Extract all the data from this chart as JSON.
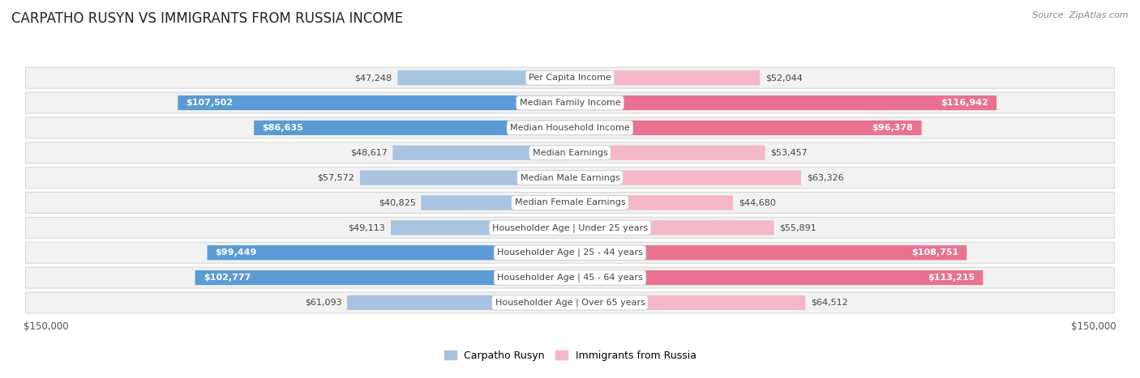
{
  "title": "CARPATHO RUSYN VS IMMIGRANTS FROM RUSSIA INCOME",
  "source": "Source: ZipAtlas.com",
  "categories": [
    "Per Capita Income",
    "Median Family Income",
    "Median Household Income",
    "Median Earnings",
    "Median Male Earnings",
    "Median Female Earnings",
    "Householder Age | Under 25 years",
    "Householder Age | 25 - 44 years",
    "Householder Age | 45 - 64 years",
    "Householder Age | Over 65 years"
  ],
  "carpatho_rusyn": [
    47248,
    107502,
    86635,
    48617,
    57572,
    40825,
    49113,
    99449,
    102777,
    61093
  ],
  "russia": [
    52044,
    116942,
    96378,
    53457,
    63326,
    44680,
    55891,
    108751,
    113215,
    64512
  ],
  "carpatho_labels": [
    "$47,248",
    "$107,502",
    "$86,635",
    "$48,617",
    "$57,572",
    "$40,825",
    "$49,113",
    "$99,449",
    "$102,777",
    "$61,093"
  ],
  "russia_labels": [
    "$52,044",
    "$116,942",
    "$96,378",
    "$53,457",
    "$63,326",
    "$44,680",
    "$55,891",
    "$108,751",
    "$113,215",
    "$64,512"
  ],
  "max_val": 150000,
  "blue_light": "#a8c4e0",
  "blue_dark": "#5b9bd5",
  "pink_light": "#f4b8c8",
  "pink_dark": "#e8728f",
  "row_bg": "#f2f2f2",
  "row_border": "#d8d8d8",
  "label_fontsize": 8.0,
  "cat_fontsize": 8.0,
  "title_fontsize": 12,
  "source_fontsize": 8,
  "legend_label_blue": "Carpatho Rusyn",
  "legend_label_pink": "Immigrants from Russia",
  "white_label_threshold": 72000
}
